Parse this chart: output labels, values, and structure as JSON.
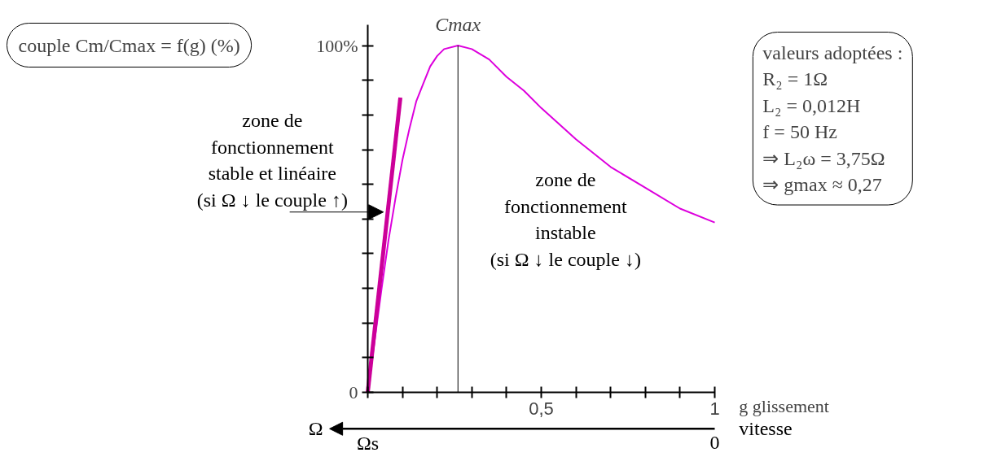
{
  "chart_data": {
    "type": "line",
    "title": "couple Cm/Cmax = f(g) (%)",
    "xlabel": "g glissement",
    "x": [
      0,
      0.02,
      0.04,
      0.06,
      0.08,
      0.1,
      0.12,
      0.14,
      0.16,
      0.18,
      0.2,
      0.22,
      0.26,
      0.3,
      0.35,
      0.4,
      0.45,
      0.5,
      0.6,
      0.7,
      0.8,
      0.9,
      1.0
    ],
    "series": [
      {
        "color": "#dd00dd",
        "values": [
          0,
          15,
          30,
          44,
          56,
          67,
          76,
          84,
          89,
          94,
          97,
          99,
          100,
          99,
          96,
          91,
          87,
          82,
          73,
          65,
          59,
          53,
          49
        ]
      },
      {
        "type": "line",
        "color": "#cc0099",
        "x": [
          0,
          0.094
        ],
        "values": [
          0,
          85
        ]
      }
    ],
    "xlim": [
      0,
      1
    ],
    "ylim": [
      0,
      106
    ],
    "xticks": [
      {
        "value": 0,
        "label": null
      },
      {
        "value": 0.1,
        "label": null
      },
      {
        "value": 0.2,
        "label": null
      },
      {
        "value": 0.3,
        "label": null
      },
      {
        "value": 0.4,
        "label": null
      },
      {
        "value": 0.5,
        "label": "0,5"
      },
      {
        "value": 0.6,
        "label": null
      },
      {
        "value": 0.7,
        "label": null
      },
      {
        "value": 0.8,
        "label": null
      },
      {
        "value": 0.9,
        "label": null
      },
      {
        "value": 1,
        "label": "1"
      }
    ],
    "yticks": [
      {
        "value": 0,
        "label": "0"
      },
      {
        "value": 10,
        "label": null
      },
      {
        "value": 20,
        "label": null
      },
      {
        "value": 30,
        "label": null
      },
      {
        "value": 40,
        "label": null
      },
      {
        "value": 50,
        "label": null
      },
      {
        "value": 60,
        "label": null
      },
      {
        "value": 70,
        "label": null
      },
      {
        "value": 80,
        "label": null
      },
      {
        "value": 90,
        "label": null
      },
      {
        "value": 100,
        "label": "100%"
      }
    ],
    "ref_lines": [
      {
        "axis": "x",
        "value": 0.26,
        "label": "Cmax",
        "color": "#000000"
      }
    ],
    "annotations": [
      {
        "text": "zone de\nfonctionnement\nstable et linéaire\n(si Ω ↓ le couple ↑)",
        "x": 0.045,
        "y": 52
      },
      "zone de\nfonctionnement\ninstable\n(si Ω ↓ le couple ↓)",
      "valeurs adoptées :\nR₂ = 1Ω\nL₂ = 0,012H\nf = 50 Hz\n⇒ L₂ω = 3,75Ω\n⇒ gmax ≈ 0,27",
      "Ω",
      "Ωs",
      "0",
      "vitesse"
    ],
    "grid": false,
    "marker": "none",
    "line_style": "solid"
  }
}
